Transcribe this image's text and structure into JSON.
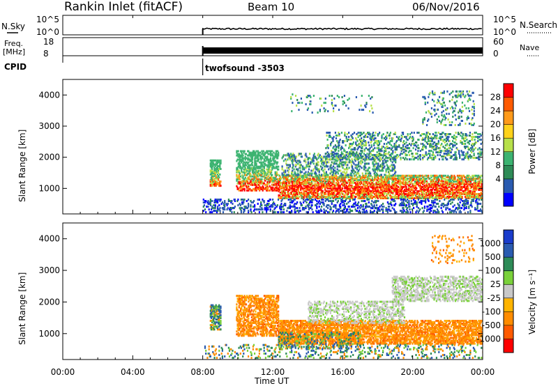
{
  "header": {
    "station": "Rankin Inlet (fitACF)",
    "beam": "Beam 10",
    "date": "06/Nov/2016"
  },
  "summary_panels": {
    "nsky_label": "N.Sky",
    "nsky_ticks": [
      "10^5",
      "10^0"
    ],
    "nsearch_label": "N.Search",
    "nsearch_ticks": [
      "10^5",
      "10^0"
    ],
    "freq_label": "Freq.",
    "freq_unit": "[MHz]",
    "freq_ticks": [
      "18",
      "8"
    ],
    "nave_label": "Nave",
    "nave_ticks": [
      "60",
      "0"
    ],
    "cpid_label": "CPID",
    "cpid_value": "twofsound -3503"
  },
  "colors": {
    "power_scale": [
      "#0000ff",
      "#2a5bb0",
      "#2e8b57",
      "#3cb371",
      "#b7e04a",
      "#ffd21a",
      "#ff9a1a",
      "#ff5a00",
      "#ff0000"
    ],
    "velocity_scale": [
      "#1a3ccc",
      "#2a5bb0",
      "#2e8b57",
      "#7ad13a",
      "#c8c8c8",
      "#ffb400",
      "#ff8c00",
      "#ff5a00",
      "#ff0000"
    ]
  },
  "chart_data": [
    {
      "type": "heatmap",
      "name": "power",
      "ylabel": "Slant Range [km]",
      "ylim": [
        180,
        4500
      ],
      "yticks": [
        "1000",
        "2000",
        "3000",
        "4000"
      ],
      "colorbar_label": "Power [dB]",
      "colorbar_ticks": [
        "4",
        "8",
        "12",
        "16",
        "20",
        "24",
        "28"
      ],
      "colorbar_range": [
        0,
        32
      ]
    },
    {
      "type": "heatmap",
      "name": "velocity",
      "ylabel": "Slant Range [km]",
      "ylim": [
        180,
        4500
      ],
      "yticks": [
        "1000",
        "2000",
        "3000",
        "4000"
      ],
      "colorbar_label": "Velocity [m s⁻¹]",
      "colorbar_ticks": [
        "1000",
        "500",
        "100",
        "25",
        "-25",
        "-100",
        "-500",
        "-1000"
      ]
    }
  ],
  "x_axis": {
    "label": "Time UT",
    "ticks": [
      "00:00",
      "04:00",
      "08:00",
      "12:00",
      "16:00",
      "20:00",
      "00:00"
    ],
    "range_hours": [
      0,
      24
    ]
  },
  "data_coverage": {
    "start_hour": 8,
    "end_hour": 24
  }
}
